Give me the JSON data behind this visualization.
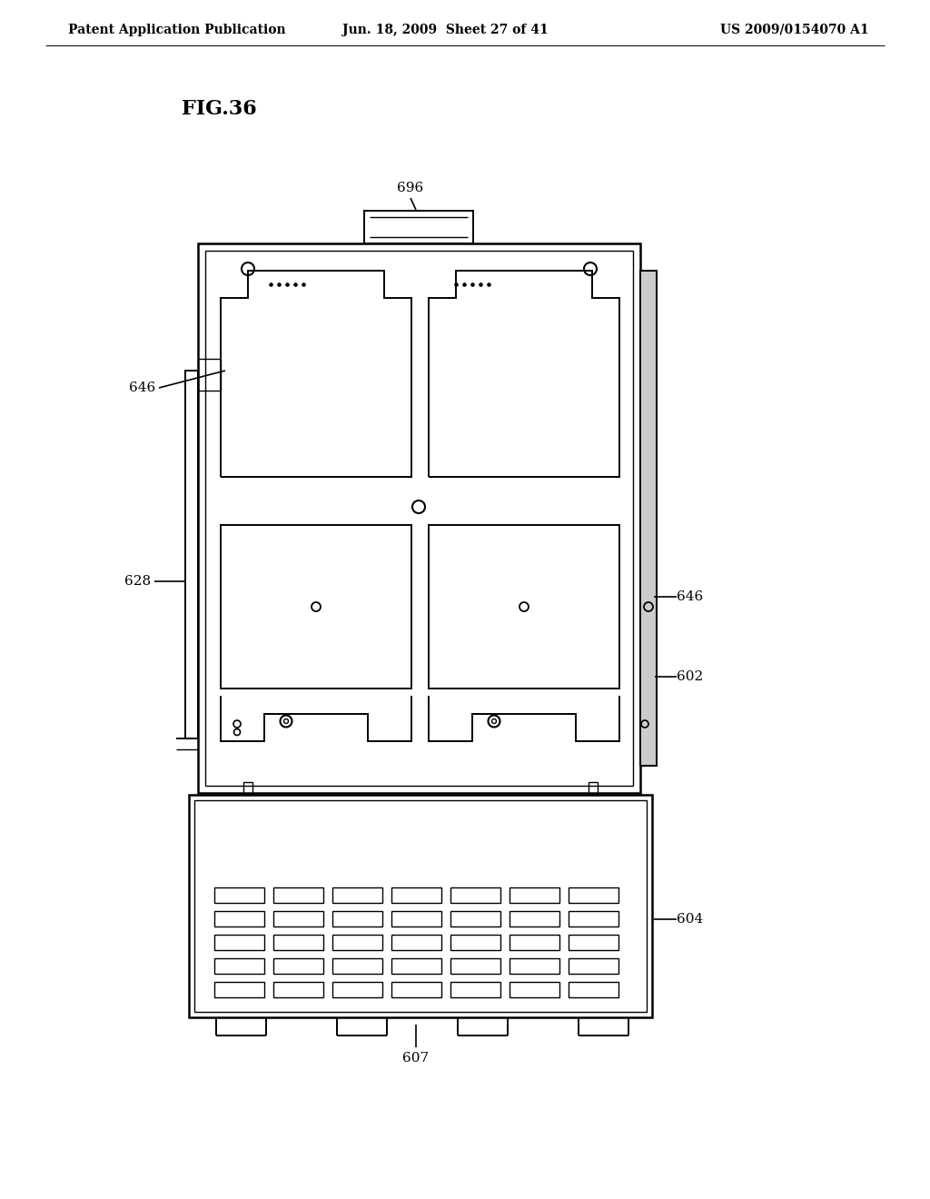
{
  "background_color": "#ffffff",
  "header_left": "Patent Application Publication",
  "header_center": "Jun. 18, 2009  Sheet 27 of 41",
  "header_right": "US 2009/0154070 A1",
  "fig_label": "FIG.36",
  "lw_main": 1.8,
  "lw_sub": 1.4,
  "lw_thin": 1.0,
  "line_color": "#000000"
}
